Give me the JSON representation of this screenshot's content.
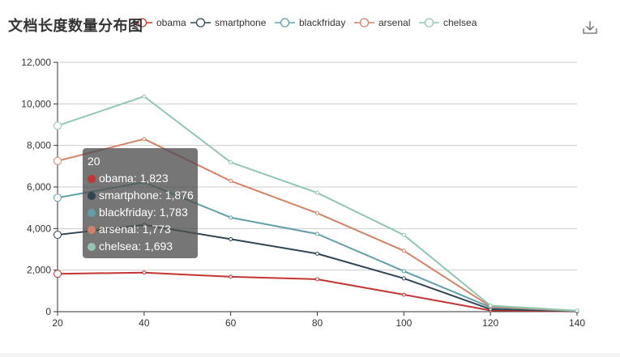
{
  "chart_data": {
    "type": "line",
    "title": "文档长度数量分布图",
    "x": [
      20,
      40,
      60,
      80,
      100,
      120,
      140
    ],
    "xlim": [
      20,
      140
    ],
    "ylim": [
      0,
      12000
    ],
    "y_ticks": [
      0,
      2000,
      4000,
      6000,
      8000,
      10000,
      12000
    ],
    "y_tick_labels": [
      "0",
      "2,000",
      "4,000",
      "6,000",
      "8,000",
      "10,000",
      "12,000"
    ],
    "x_tick_labels": [
      "20",
      "40",
      "60",
      "80",
      "100",
      "120",
      "140"
    ],
    "grid": "horizontal",
    "legend_position": "top",
    "series": [
      {
        "name": "obama",
        "color": "#c23531",
        "values": [
          1823,
          1880,
          1680,
          1560,
          820,
          60,
          10
        ]
      },
      {
        "name": "smartphone",
        "color": "#2f4554",
        "values": [
          1876,
          2300,
          1810,
          1230,
          780,
          60,
          10
        ]
      },
      {
        "name": "blackfriday",
        "color": "#61a0a8",
        "values": [
          1783,
          2050,
          1040,
          950,
          350,
          90,
          10
        ]
      },
      {
        "name": "arsenal",
        "color": "#d48265",
        "values": [
          1773,
          2080,
          1760,
          1000,
          980,
          40,
          10
        ]
      },
      {
        "name": "chelsea",
        "color": "#91c7ae",
        "values": [
          1693,
          2050,
          900,
          980,
          760,
          40,
          10
        ]
      }
    ],
    "stacked": true,
    "tooltip": {
      "title": "20",
      "rows": [
        {
          "name": "obama",
          "value": "1,823"
        },
        {
          "name": "smartphone",
          "value": "1,876"
        },
        {
          "name": "blackfriday",
          "value": "1,783"
        },
        {
          "name": "arsenal",
          "value": "1,773"
        },
        {
          "name": "chelsea",
          "value": "1,693"
        }
      ]
    }
  },
  "toolbox": {
    "download_icon": "download-icon"
  }
}
